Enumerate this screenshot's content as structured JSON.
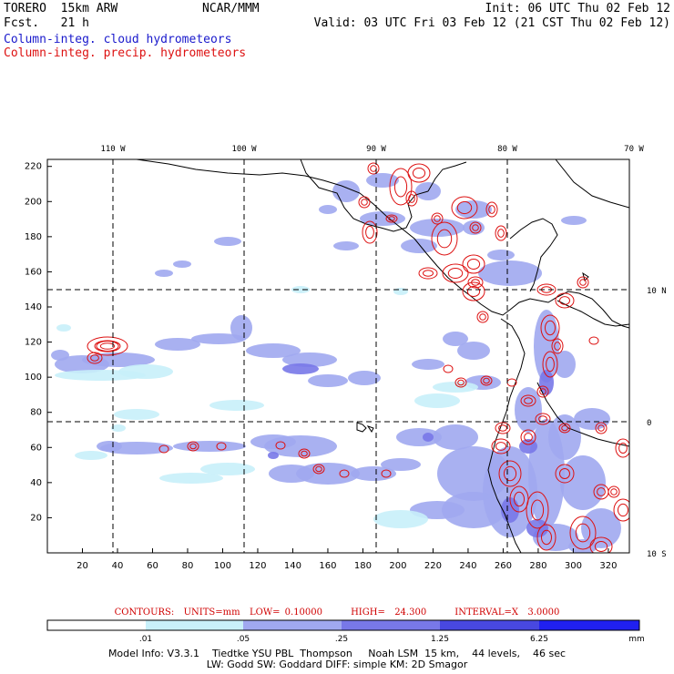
{
  "header": {
    "model": "TORERO  15km ARW",
    "forecast": "Fcst.   21 h",
    "org": "NCAR/MMM",
    "init": "Init: 06 UTC Thu 02 Feb 12",
    "valid": "Valid: 03 UTC Fri 03 Feb 12 (21 CST Thu 02 Feb 12)",
    "legend_cloud": "Column-integ. cloud hydrometeors",
    "legend_precip": "Column-integ. precip. hydrometeors"
  },
  "colors": {
    "cloud_light": "#c8f0fa",
    "cloud_mid": "#a0a8f0",
    "cloud_strong": "#7878e8",
    "cloud_dark": "#4848e0",
    "cloud_max": "#2020f0",
    "precip": "#dd1111",
    "coast": "#000000"
  },
  "map": {
    "top_lon_labels": [
      "110 W",
      "100 W",
      "90 W",
      "80 W",
      "70 W"
    ],
    "right_lat_labels": [
      "10 N",
      "0",
      "10 S"
    ],
    "y_ticks": [
      "20",
      "40",
      "60",
      "80",
      "100",
      "120",
      "140",
      "160",
      "180",
      "200",
      "220"
    ],
    "x_ticks": [
      "20",
      "40",
      "60",
      "80",
      "100",
      "120",
      "140",
      "160",
      "180",
      "200",
      "220",
      "240",
      "260",
      "280",
      "300",
      "320"
    ]
  },
  "contour_info": "CONTOURS:  UNITS=mm  LOW= 0.10000      HIGH=  24.300      INTERVAL=X  3.0000",
  "colorbar": {
    "labels": [
      ".01",
      ".05",
      ".25",
      "1.25",
      "6.25"
    ],
    "unit": "mm",
    "colors": [
      "#ffffff",
      "#c8f0fa",
      "#a0a8f0",
      "#7878e8",
      "#4848e0",
      "#2020f0"
    ]
  },
  "model_info": {
    "line1": "Model Info: V3.3.1    Tiedtke YSU PBL  Thompson     Noah LSM  15 km,    44 levels,    46 sec",
    "line2": "LW: Godd SW: Goddard DIFF: simple KM: 2D Smagor"
  }
}
